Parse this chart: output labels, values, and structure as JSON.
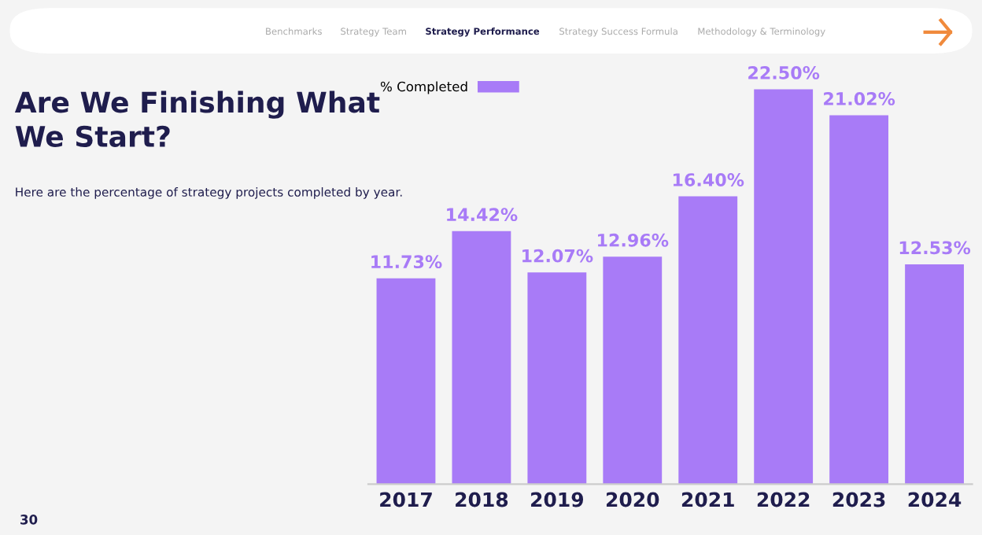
{
  "chart_data": {
    "type": "bar",
    "title": "Are We Finishing What We Start?",
    "subtitle": "Here are the percentage of strategy projects completed by year.",
    "annotations": [
      "Benchmarks",
      "Strategy Team",
      "Strategy Performance",
      "Strategy Success Formula",
      "Methodology & Terminology",
      "30"
    ],
    "categories": [
      "2017",
      "2018",
      "2019",
      "2020",
      "2021",
      "2022",
      "2023",
      "2024"
    ],
    "series": [
      {
        "name": "% Completed",
        "color": "#a87bf7",
        "values": [
          11.73,
          14.42,
          12.07,
          12.96,
          16.4,
          22.5,
          21.02,
          12.53
        ],
        "value_labels": [
          "11.73%",
          "14.42%",
          "12.07%",
          "12.96%",
          "16.40%",
          "22.50%",
          "21.02%",
          "12.53%"
        ]
      }
    ],
    "tick_labels": "x",
    "legend": "top left",
    "grid": false
  }
}
